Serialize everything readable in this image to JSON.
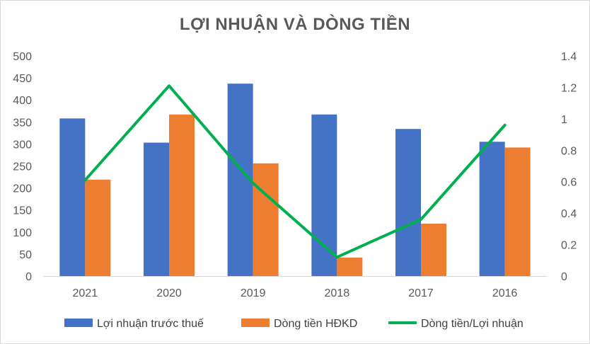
{
  "chart_data": {
    "type": "bar",
    "title": "LỢI NHUẬN VÀ DÒNG TIỀN",
    "categories": [
      "2021",
      "2020",
      "2019",
      "2018",
      "2017",
      "2016"
    ],
    "series": [
      {
        "name": "Lợi nhuận trước thuế",
        "type": "bar",
        "axis": "left",
        "color": "#4472c4",
        "values": [
          358,
          303,
          437,
          367,
          334,
          305
        ]
      },
      {
        "name": "Dòng tiền HĐKD",
        "type": "bar",
        "axis": "left",
        "color": "#ed7d31",
        "values": [
          219,
          367,
          256,
          42,
          119,
          292
        ]
      },
      {
        "name": "Dòng tiền/Lợi nhuận",
        "type": "line",
        "axis": "right",
        "color": "#00b050",
        "values": [
          0.61,
          1.21,
          0.59,
          0.12,
          0.36,
          0.96
        ]
      }
    ],
    "y_left": {
      "min": 0,
      "max": 500,
      "step": 50,
      "ticks": [
        "0",
        "50",
        "100",
        "150",
        "200",
        "250",
        "300",
        "350",
        "400",
        "450",
        "500"
      ]
    },
    "y_right": {
      "min": 0,
      "max": 1.4,
      "step": 0.2,
      "ticks": [
        "0",
        "0.2",
        "0.4",
        "0.6",
        "0.8",
        "1",
        "1.2",
        "1.4"
      ]
    },
    "grid": false,
    "legend_position": "bottom"
  }
}
